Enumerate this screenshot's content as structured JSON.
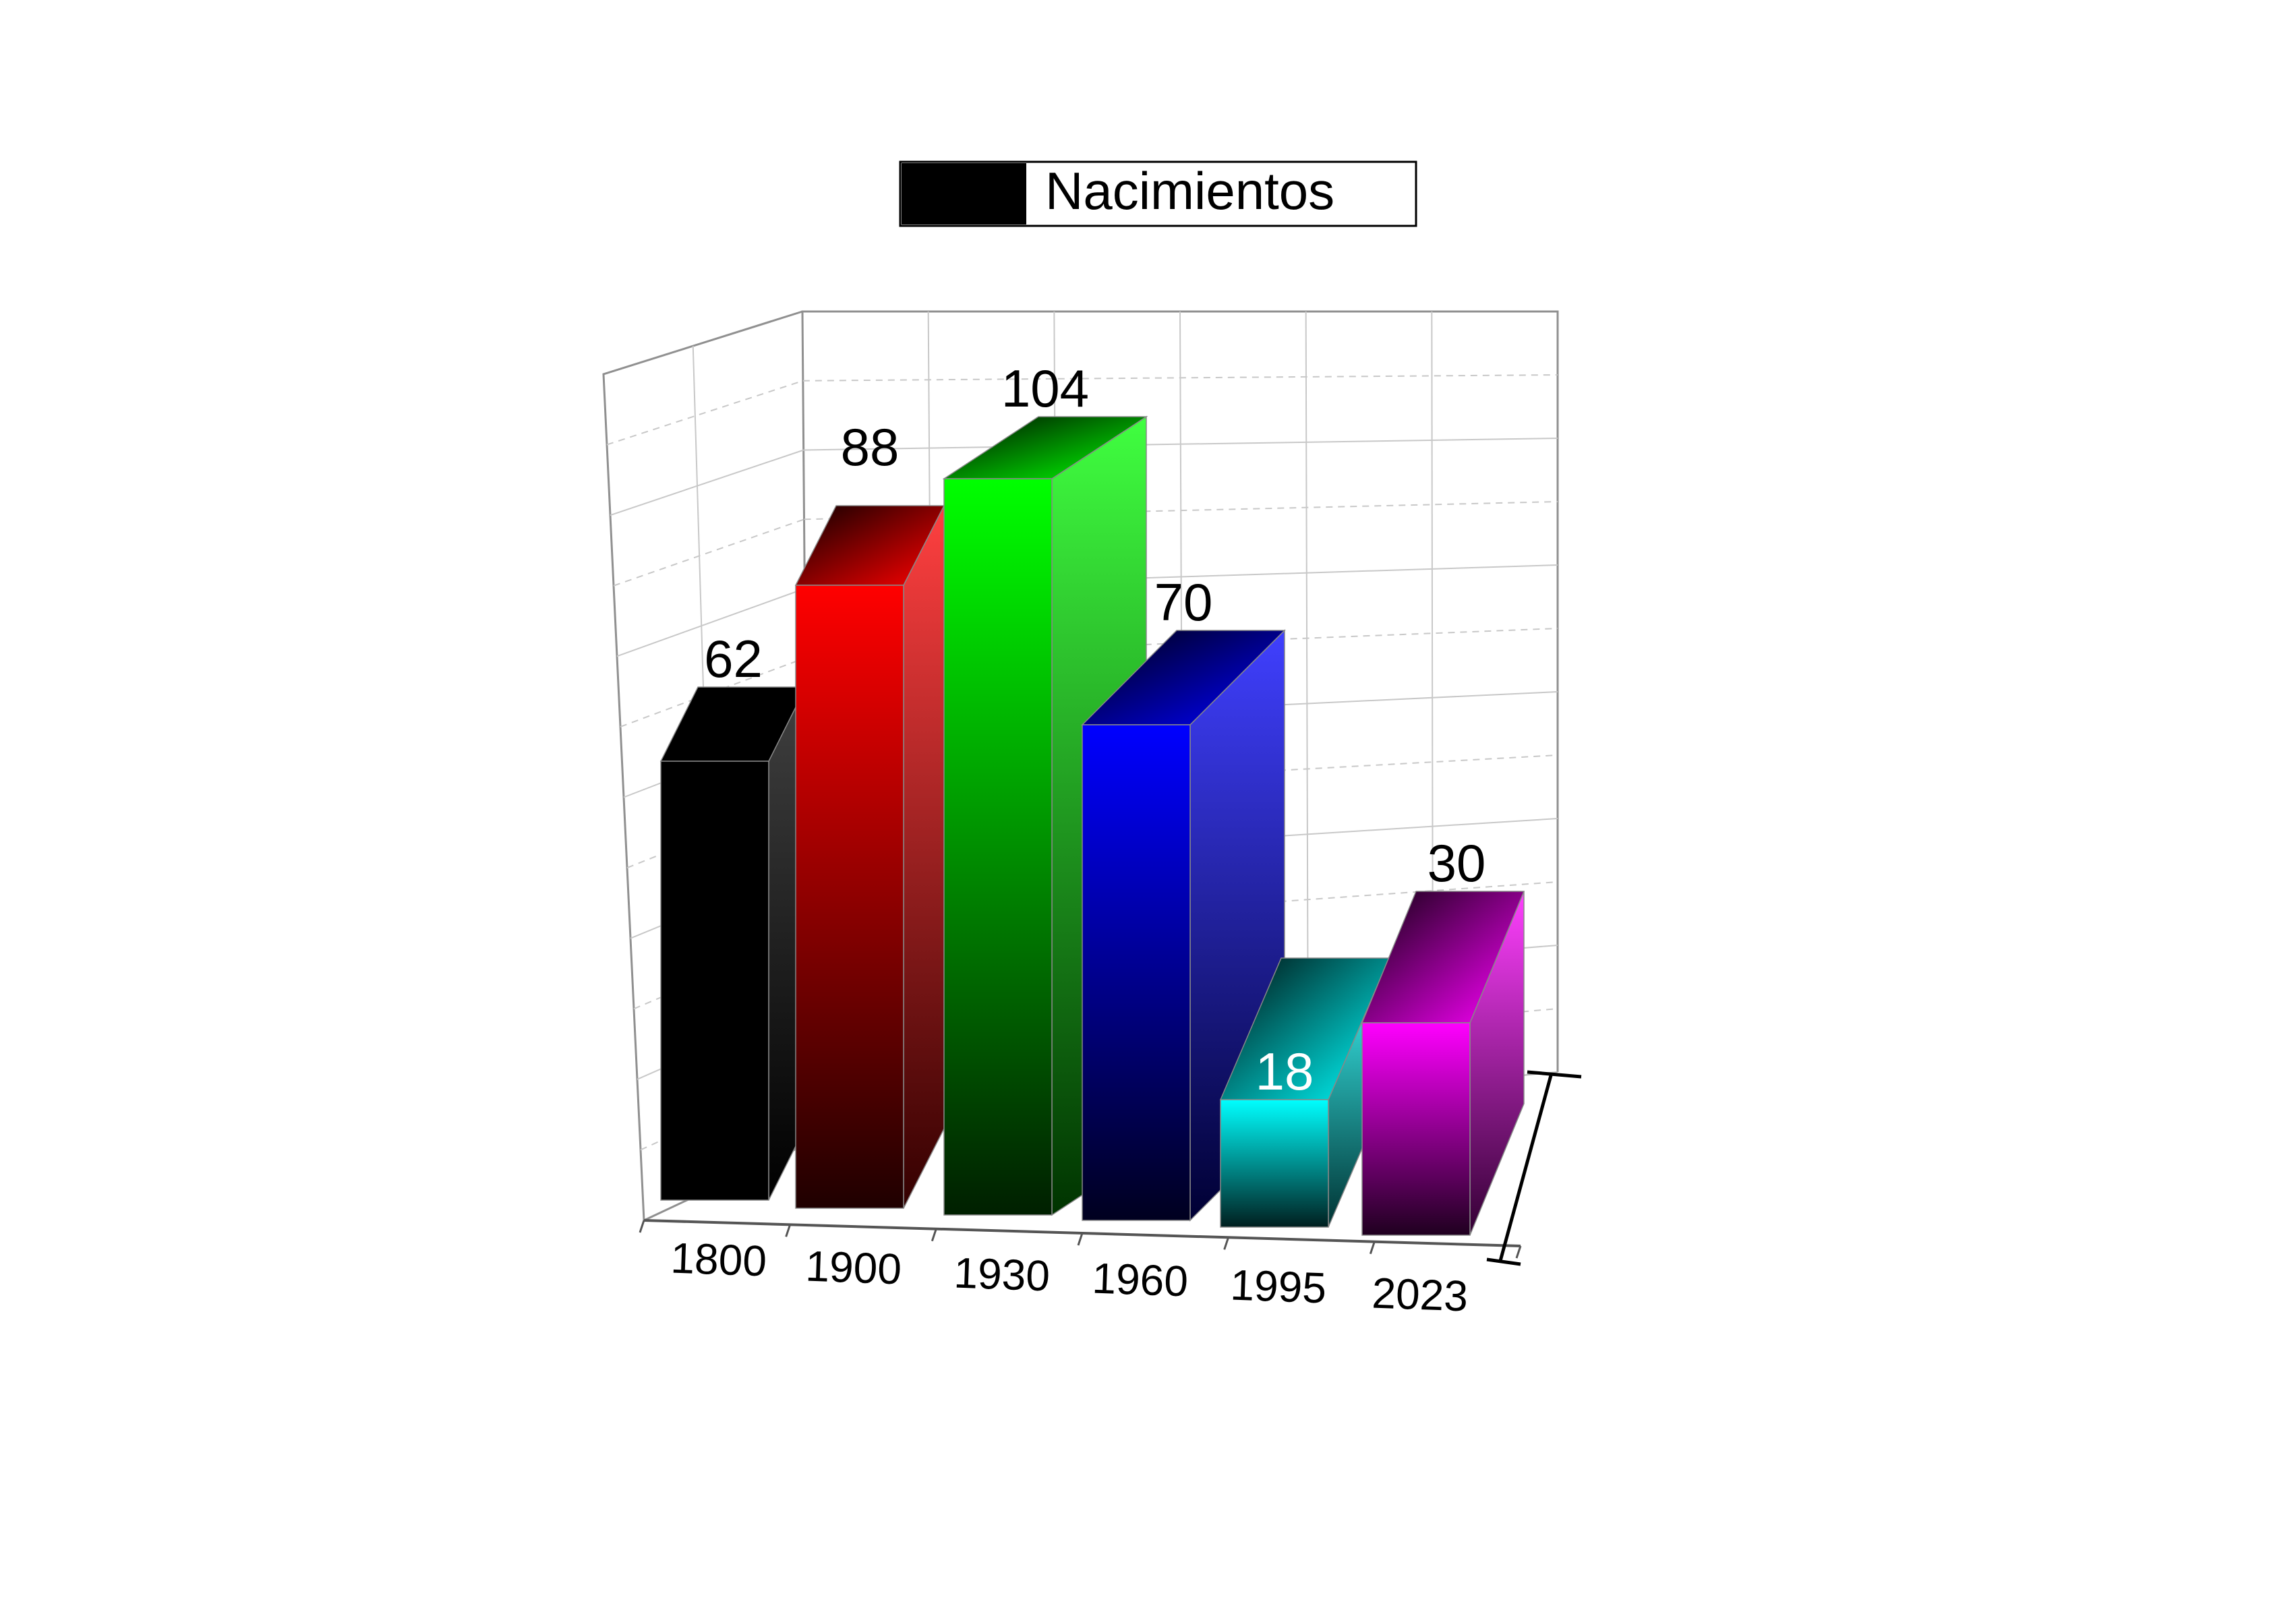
{
  "chart_data": {
    "type": "bar",
    "style": "3d",
    "categories": [
      "1800",
      "1900",
      "1930",
      "1960",
      "1995",
      "2023"
    ],
    "series": [
      {
        "name": "Nacimientos",
        "values": [
          62,
          88,
          104,
          70,
          18,
          30
        ]
      }
    ],
    "bar_colors": [
      "#000000",
      "#ff0000",
      "#00ff00",
      "#0000ff",
      "#00ffff",
      "#ff00ff"
    ],
    "data_labels": [
      "62",
      "88",
      "104",
      "70",
      "18",
      "30"
    ],
    "legend_position": "top-center",
    "grid": true,
    "ylim": [
      0,
      120
    ]
  }
}
